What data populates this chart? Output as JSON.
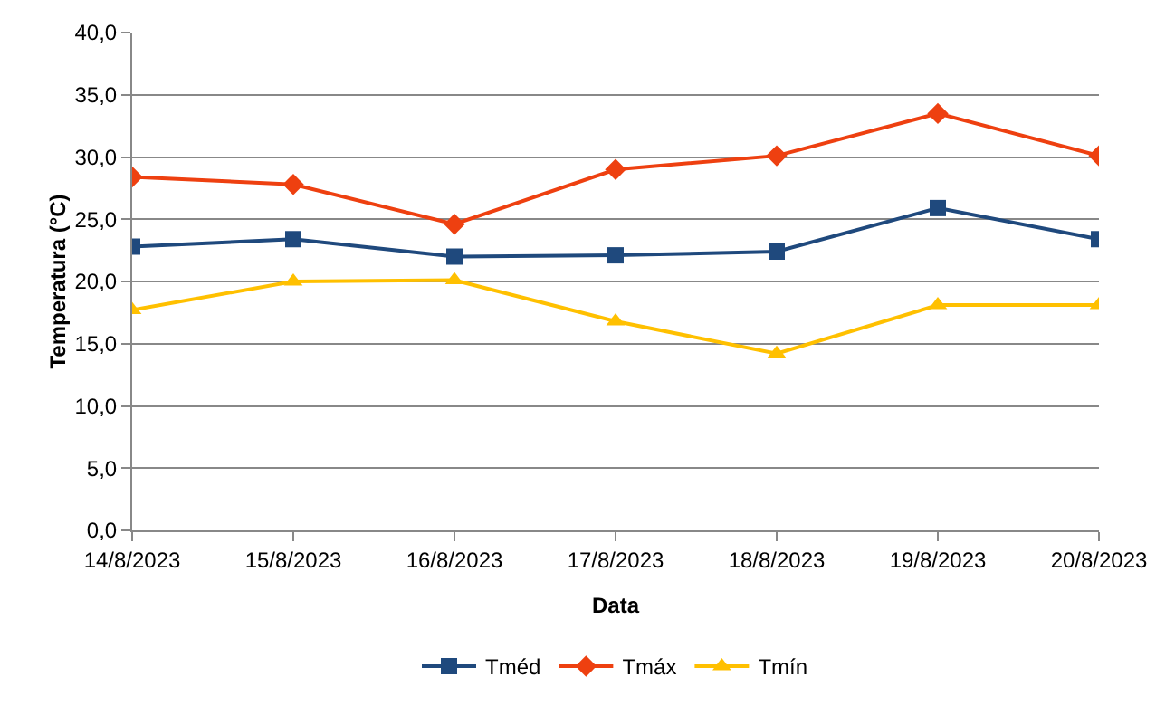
{
  "chart_data": {
    "type": "line",
    "xlabel": "Data",
    "ylabel": "Temperatura (°C)",
    "categories": [
      "14/8/2023",
      "15/8/2023",
      "16/8/2023",
      "17/8/2023",
      "18/8/2023",
      "19/8/2023",
      "20/8/2023"
    ],
    "series": [
      {
        "name": "Tméd",
        "color": "#1f497d",
        "marker": "square",
        "values": [
          22.8,
          23.4,
          22.0,
          22.1,
          22.4,
          25.9,
          23.4
        ]
      },
      {
        "name": "Tmáx",
        "color": "#ee4010",
        "marker": "diamond",
        "values": [
          28.4,
          27.8,
          24.6,
          29.0,
          30.1,
          33.5,
          30.1
        ]
      },
      {
        "name": "Tmín",
        "color": "#ffc000",
        "marker": "triangle",
        "values": [
          17.7,
          20.0,
          20.1,
          16.8,
          14.2,
          18.1,
          18.1
        ]
      }
    ],
    "ylim": [
      0,
      40
    ],
    "yticks": [
      {
        "value": 0,
        "label": "0,0"
      },
      {
        "value": 5,
        "label": "5,0"
      },
      {
        "value": 10,
        "label": "10,0"
      },
      {
        "value": 15,
        "label": "15,0"
      },
      {
        "value": 20,
        "label": "20,0"
      },
      {
        "value": 25,
        "label": "25,0"
      },
      {
        "value": 30,
        "label": "30,0"
      },
      {
        "value": 35,
        "label": "35,0"
      },
      {
        "value": 40,
        "label": "40,0"
      }
    ],
    "grid": "y",
    "legend": "bottom",
    "line_style": "solid"
  }
}
